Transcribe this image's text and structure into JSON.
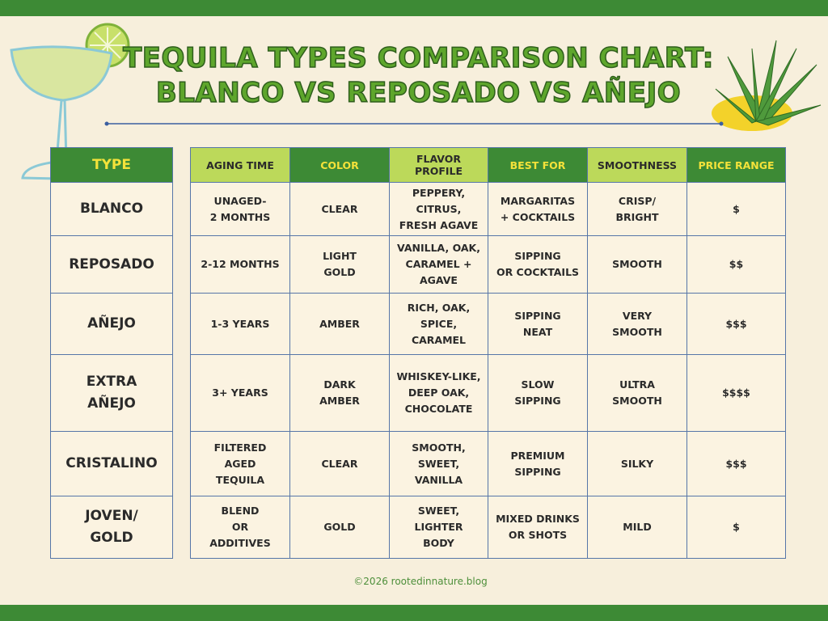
{
  "header": {
    "title": [
      "TEQUILA TYPES COMPARISON CHART:",
      "BLANCO VS REPOSADO VS AÑEJO"
    ]
  },
  "table": {
    "columns": [
      "TYPE",
      "AGING TIME",
      "COLOR",
      "FLAVOR\nPROFILE",
      "BEST FOR",
      "SMOOTHNESS",
      "PRICE RANGE"
    ],
    "rows": [
      [
        "BLANCO",
        "UNAGED-\n2 MONTHS",
        "CLEAR",
        "PEPPERY,\nCITRUS,\nFRESH AGAVE",
        "MARGARITAS\n+ COCKTAILS",
        "CRISP/\nBRIGHT",
        "$"
      ],
      [
        "REPOSADO",
        "2-12 MONTHS",
        "LIGHT\nGOLD",
        "VANILLA, OAK,\nCARAMEL +\nAGAVE",
        "SIPPING\nOR COCKTAILS",
        "SMOOTH",
        "$$"
      ],
      [
        "AÑEJO",
        "1-3 YEARS",
        "AMBER",
        "RICH, OAK,\nSPICE,\nCARAMEL",
        "SIPPING\nNEAT",
        "VERY\nSMOOTH",
        "$$$"
      ],
      [
        "EXTRA\nAÑEJO",
        "3+ YEARS",
        "DARK\nAMBER",
        "WHISKEY-LIKE,\nDEEP OAK,\nCHOCOLATE",
        "SLOW\nSIPPING",
        "ULTRA\nSMOOTH",
        "$$$$"
      ],
      [
        "CRISTALINO",
        "FILTERED\nAGED\nTEQUILA",
        "CLEAR",
        "SMOOTH,\nSWEET,\nVANILLA",
        "PREMIUM\nSIPPING",
        "SILKY",
        "$$$"
      ],
      [
        "JOVEN/\nGOLD",
        "BLEND\nOR\nADDITIVES",
        "GOLD",
        "SWEET,\nLIGHTER\nBODY",
        "MIXED DRINKS\nOR SHOTS",
        "MILD",
        "$"
      ]
    ]
  },
  "footer": {
    "credit": "©2026 rootedinnature.blog"
  }
}
